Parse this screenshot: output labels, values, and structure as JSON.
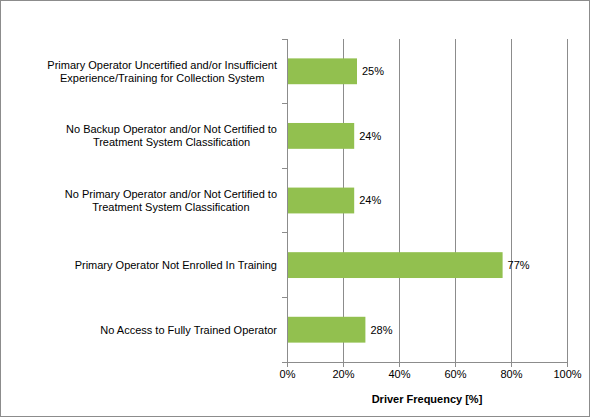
{
  "chart_data": {
    "type": "bar",
    "orientation": "horizontal",
    "categories": [
      "Primary Operator Uncertified and/or Insufficient Experience/Training for Collection System",
      "No Backup Operator and/or Not Certified to Treatment System Classification",
      "No Primary Operator and/or Not Certified to Treatment System Classification",
      "Primary Operator Not Enrolled In Training",
      "No Access to Fully Trained Operator"
    ],
    "values": [
      25,
      24,
      24,
      77,
      28
    ],
    "value_labels": [
      "25%",
      "24%",
      "24%",
      "77%",
      "28%"
    ],
    "data_labels": true,
    "color": "#92c04f",
    "xlim": [
      0,
      100
    ],
    "xticks": [
      {
        "value": 0,
        "label": "0%"
      },
      {
        "value": 20,
        "label": "20%"
      },
      {
        "value": 40,
        "label": "40%"
      },
      {
        "value": 60,
        "label": "60%"
      },
      {
        "value": 80,
        "label": "80%"
      },
      {
        "value": 100,
        "label": "100%"
      }
    ],
    "grid": true,
    "x_label": "Driver Frequency [%]"
  }
}
